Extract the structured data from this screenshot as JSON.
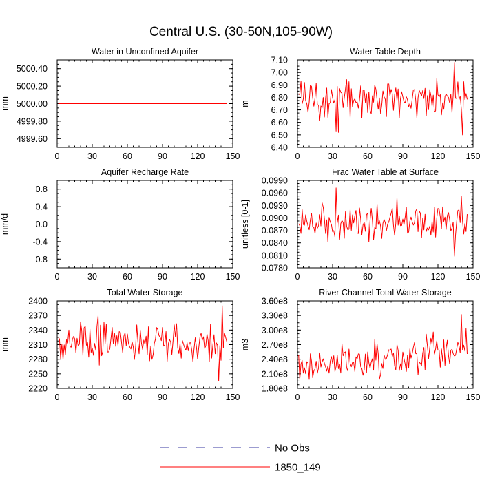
{
  "figure": {
    "title": "Central U.S. (30-50N,105-90W)",
    "legend": [
      {
        "label": "No Obs",
        "color": "#3a3aa0",
        "dash": "dashed"
      },
      {
        "label": "1850_149",
        "color": "#ff0000",
        "dash": "solid"
      }
    ],
    "series_color": "#ff0000"
  },
  "chart_data": [
    {
      "type": "line",
      "title": "Water in Unconfined Aquifer",
      "ylabel": "mm",
      "xlim": [
        0,
        150
      ],
      "xticks": [
        "0",
        "30",
        "60",
        "90",
        "120",
        "150"
      ],
      "ylim": [
        4999.5,
        5000.5
      ],
      "yticks": [
        "4999.60",
        "4999.80",
        "5000.00",
        "5000.20",
        "5000.40"
      ],
      "ytick_values": [
        4999.6,
        4999.8,
        5000.0,
        5000.2,
        5000.4
      ],
      "series": [
        {
          "x_start": 1,
          "x_end": 145,
          "constant": 5000.0
        }
      ]
    },
    {
      "type": "line",
      "title": "Water Table Depth",
      "ylabel": "m",
      "xlim": [
        0,
        150
      ],
      "xticks": [
        "0",
        "30",
        "60",
        "90",
        "120",
        "150"
      ],
      "ylim": [
        6.4,
        7.1
      ],
      "yticks": [
        "6.40",
        "6.50",
        "6.60",
        "6.70",
        "6.80",
        "6.90",
        "7.00",
        "7.10"
      ],
      "ytick_values": [
        6.4,
        6.5,
        6.6,
        6.7,
        6.8,
        6.9,
        7.0,
        7.1
      ],
      "series": [
        {
          "x_start": 1,
          "x_end": 145,
          "min": 6.5,
          "max": 7.08,
          "extremes": [
            [
              33,
              6.53
            ],
            [
              35,
              6.52
            ],
            [
              134,
              7.08
            ],
            [
              141,
              6.5
            ]
          ]
        }
      ]
    },
    {
      "type": "line",
      "title": "Aquifer Recharge Rate",
      "ylabel": "mm/d",
      "xlim": [
        0,
        150
      ],
      "xticks": [
        "0",
        "30",
        "60",
        "90",
        "120",
        "150"
      ],
      "ylim": [
        -1.0,
        1.0
      ],
      "yticks": [
        "-0.8",
        "-0.4",
        "0.0",
        "0.4",
        "0.8"
      ],
      "ytick_values": [
        -0.8,
        -0.4,
        0.0,
        0.4,
        0.8
      ],
      "series": [
        {
          "x_start": 1,
          "x_end": 145,
          "constant": 0.0
        }
      ]
    },
    {
      "type": "line",
      "title": "Frac Water Table at Surface",
      "ylabel": "unitless [0-1]",
      "xlim": [
        0,
        150
      ],
      "xticks": [
        "0",
        "30",
        "60",
        "90",
        "120",
        "150"
      ],
      "ylim": [
        0.078,
        0.099
      ],
      "yticks": [
        "0.0780",
        "0.0810",
        "0.0840",
        "0.0870",
        "0.0900",
        "0.0930",
        "0.0960",
        "0.0990"
      ],
      "ytick_values": [
        0.078,
        0.081,
        0.084,
        0.087,
        0.09,
        0.093,
        0.096,
        0.099
      ],
      "series": [
        {
          "x_start": 1,
          "x_end": 145,
          "min": 0.0808,
          "max": 0.0972,
          "extremes": [
            [
              33,
              0.0972
            ],
            [
              85,
              0.0948
            ],
            [
              134,
              0.0808
            ],
            [
              140,
              0.0952
            ]
          ]
        }
      ]
    },
    {
      "type": "line",
      "title": "Total Water Storage",
      "ylabel": "mm",
      "xlim": [
        0,
        150
      ],
      "xticks": [
        "0",
        "30",
        "60",
        "90",
        "120",
        "150"
      ],
      "ylim": [
        2220,
        2400
      ],
      "yticks": [
        "2220",
        "2250",
        "2280",
        "2310",
        "2340",
        "2370",
        "2400"
      ],
      "ytick_values": [
        2220,
        2250,
        2280,
        2310,
        2340,
        2370,
        2400
      ],
      "series": [
        {
          "x_start": 1,
          "x_end": 145,
          "min": 2235,
          "max": 2390,
          "extremes": [
            [
              35,
              2370
            ],
            [
              138,
              2235
            ],
            [
              141,
              2390
            ]
          ]
        }
      ]
    },
    {
      "type": "line",
      "title": "River Channel Total Water Storage",
      "ylabel": "m3",
      "xlim": [
        0,
        150
      ],
      "xticks": [
        "0",
        "30",
        "60",
        "90",
        "120",
        "150"
      ],
      "ylim": [
        180000000,
        360000000
      ],
      "yticks": [
        "1.80e8",
        "2.10e8",
        "2.40e8",
        "2.70e8",
        "3.00e8",
        "3.30e8",
        "3.60e8"
      ],
      "ytick_values": [
        180000000,
        210000000,
        240000000,
        270000000,
        300000000,
        330000000,
        360000000
      ],
      "series": [
        {
          "x_start": 1,
          "x_end": 145,
          "min": 190000000,
          "max": 332000000,
          "trend": [
            [
              1,
              220000000
            ],
            [
              145,
              262000000
            ]
          ],
          "extremes": [
            [
              140,
              332000000
            ]
          ]
        }
      ]
    }
  ]
}
